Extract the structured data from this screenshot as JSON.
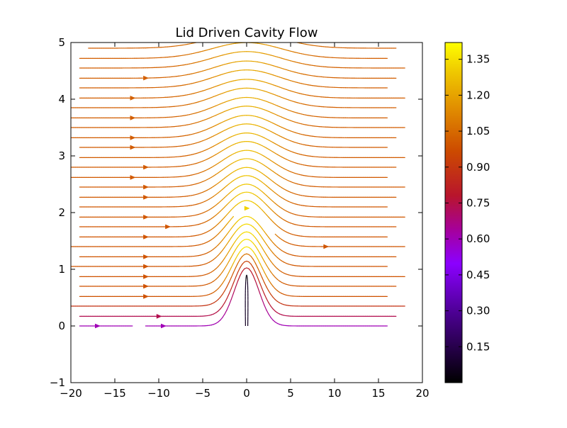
{
  "chart_data": {
    "type": "streamline",
    "title": "Lid Driven Cavity Flow",
    "xlabel": "",
    "ylabel": "",
    "xlim": [
      -20,
      20
    ],
    "ylim": [
      -1,
      5
    ],
    "x_ticks": [
      -20,
      -15,
      -10,
      -5,
      0,
      5,
      10,
      15,
      20
    ],
    "x_tick_labels": [
      "−20",
      "−15",
      "−10",
      "−5",
      "0",
      "5",
      "10",
      "15",
      "20"
    ],
    "y_ticks": [
      -1,
      0,
      1,
      2,
      3,
      4,
      5
    ],
    "y_tick_labels": [
      "−1",
      "0",
      "1",
      "2",
      "3",
      "4",
      "5"
    ],
    "grid": false,
    "colorbar": {
      "colormap": "gnuplot",
      "range": [
        0,
        1.42
      ],
      "ticks": [
        0.15,
        0.3,
        0.45,
        0.6,
        0.75,
        0.9,
        1.05,
        1.2,
        1.35
      ],
      "tick_labels": [
        "0.15",
        "0.30",
        "0.45",
        "0.60",
        "0.75",
        "0.90",
        "1.05",
        "1.20",
        "1.35"
      ],
      "placement": "right"
    },
    "flow_model": {
      "description_free": true,
      "obstacle_peak_x": 0,
      "obstacle_height": 0.9
    },
    "streamlines": [
      {
        "y0": 0.0,
        "segments": [
          [
            -19,
            -13
          ],
          [
            -11.5,
            -6
          ]
        ],
        "arrows": [
          -17,
          -9.5
        ]
      },
      {
        "y0": 0.17,
        "segments": [
          [
            -19,
            -1.2
          ]
        ],
        "arrows": [
          -10
        ]
      },
      {
        "y0": 0.35,
        "segments": [
          [
            -20,
            -2.0
          ]
        ],
        "arrows": []
      },
      {
        "y0": 0.52,
        "segments": [
          [
            -19,
            -3.5
          ]
        ],
        "arrows": [
          -11.5
        ]
      },
      {
        "y0": 0.7,
        "segments": [
          [
            -19,
            -4.5
          ]
        ],
        "arrows": [
          -11.5
        ]
      },
      {
        "y0": 0.87,
        "segments": [
          [
            -19,
            -5.5
          ]
        ],
        "arrows": [
          -11.5
        ]
      },
      {
        "y0": 1.05,
        "segments": [
          [
            -20,
            -6
          ]
        ],
        "arrows": [
          -11.5
        ]
      },
      {
        "y0": 1.22,
        "segments": [
          [
            -19,
            -7
          ]
        ],
        "arrows": [
          -11.5
        ]
      },
      {
        "y0": 1.4,
        "segments": [
          [
            -20,
            -1.5
          ],
          [
            3.2,
            20
          ]
        ],
        "arrows": [
          0,
          9
        ]
      },
      {
        "y0": 1.57,
        "segments": [
          [
            -19,
            -8
          ]
        ],
        "arrows": [
          -11.5
        ]
      },
      {
        "y0": 1.75,
        "segments": [
          [
            -19,
            -9
          ]
        ],
        "arrows": [
          -9
        ]
      },
      {
        "y0": 1.92,
        "segments": [
          [
            -19,
            -9.5
          ]
        ],
        "arrows": [
          -11.5
        ]
      },
      {
        "y0": 2.1,
        "segments": [
          [
            -19,
            -10
          ]
        ],
        "arrows": []
      },
      {
        "y0": 2.27,
        "segments": [
          [
            -19,
            -10.5
          ]
        ],
        "arrows": [
          -11.5
        ]
      },
      {
        "y0": 2.45,
        "segments": [
          [
            -19,
            -11
          ]
        ],
        "arrows": [
          -11.5
        ]
      },
      {
        "y0": 2.62,
        "segments": [
          [
            -20,
            -11.5
          ]
        ],
        "arrows": [
          -13
        ]
      },
      {
        "y0": 2.8,
        "segments": [
          [
            -20,
            -12
          ]
        ],
        "arrows": [
          -11.5
        ]
      },
      {
        "y0": 2.97,
        "segments": [
          [
            -19,
            -12.5
          ]
        ],
        "arrows": []
      },
      {
        "y0": 3.15,
        "segments": [
          [
            -19,
            -13
          ]
        ],
        "arrows": [
          -13
        ]
      },
      {
        "y0": 3.32,
        "segments": [
          [
            -20,
            -13
          ]
        ],
        "arrows": [
          -13
        ]
      },
      {
        "y0": 3.5,
        "segments": [
          [
            -20,
            -14
          ]
        ],
        "arrows": []
      },
      {
        "y0": 3.67,
        "segments": [
          [
            -20,
            -14
          ]
        ],
        "arrows": [
          -13
        ]
      },
      {
        "y0": 3.85,
        "segments": [
          [
            -20,
            -14
          ]
        ],
        "arrows": []
      },
      {
        "y0": 4.02,
        "segments": [
          [
            -19,
            -15
          ]
        ],
        "arrows": [
          -13
        ]
      },
      {
        "y0": 4.2,
        "segments": [
          [
            -19,
            -15
          ]
        ],
        "arrows": []
      },
      {
        "y0": 4.37,
        "segments": [
          [
            -19,
            -15
          ]
        ],
        "arrows": [
          -11.5
        ]
      },
      {
        "y0": 4.55,
        "segments": [
          [
            -19,
            -15
          ]
        ],
        "arrows": []
      },
      {
        "y0": 4.72,
        "segments": [
          [
            -19,
            -15
          ]
        ],
        "arrows": []
      },
      {
        "y0": 4.9,
        "segments": [
          [
            -18,
            -15
          ]
        ],
        "arrows": []
      }
    ]
  }
}
